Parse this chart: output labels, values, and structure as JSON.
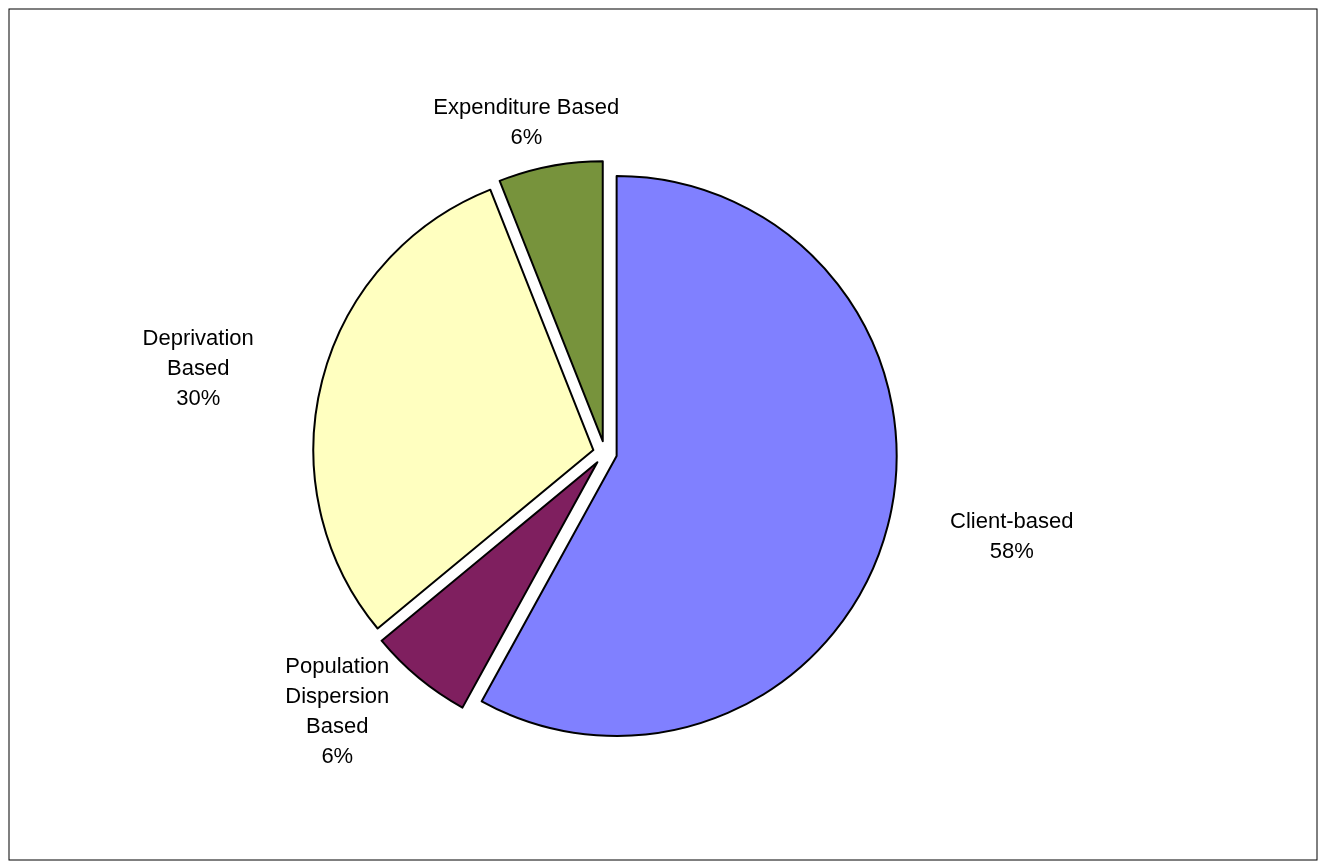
{
  "chart_data": {
    "type": "pie",
    "categories": [
      "Client-based",
      "Population Dispersion Based",
      "Deprivation Based",
      "Expenditure Based"
    ],
    "values": [
      58,
      6,
      30,
      6
    ],
    "colors": [
      "#8080ff",
      "#7f1f5f",
      "#ffffc0",
      "#77933c"
    ],
    "value_labels": [
      "58%",
      "6%",
      "30%",
      "6%"
    ]
  }
}
